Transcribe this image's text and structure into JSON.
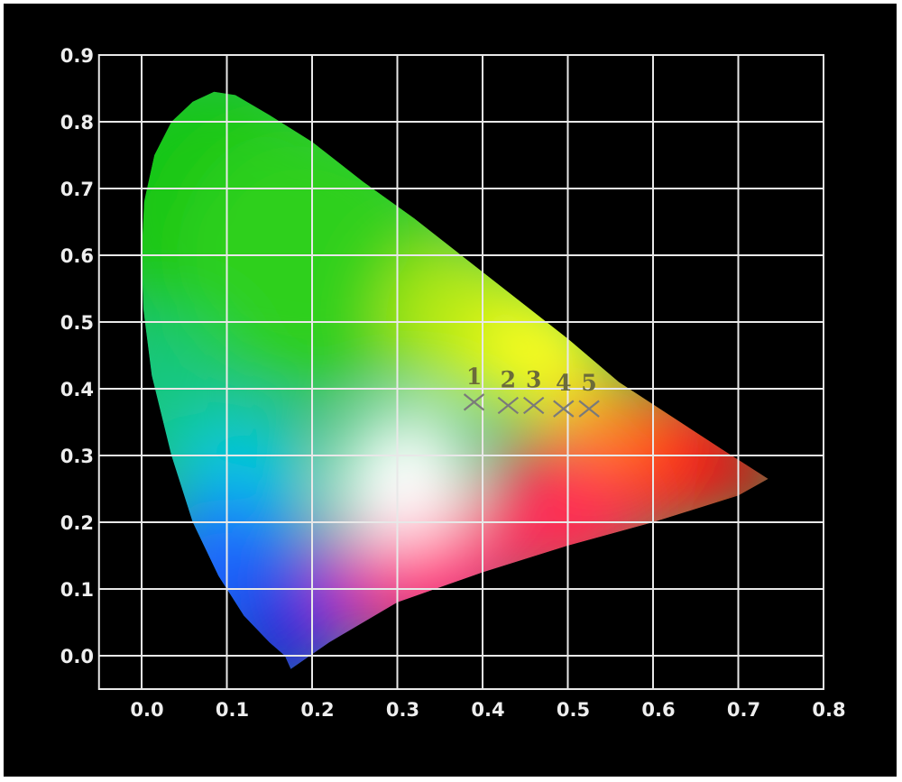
{
  "chart_data": {
    "type": "scatter",
    "title": "",
    "xlabel": "",
    "ylabel": "",
    "xlim": [
      -0.05,
      0.8
    ],
    "ylim": [
      -0.05,
      0.9
    ],
    "x_ticks": [
      "0.0",
      "0.1",
      "0.2",
      "0.3",
      "0.4",
      "0.5",
      "0.6",
      "0.7",
      "0.8"
    ],
    "y_ticks": [
      "0.0",
      "0.1",
      "0.2",
      "0.3",
      "0.4",
      "0.5",
      "0.6",
      "0.7",
      "0.8",
      "0.9"
    ],
    "grid": true,
    "background": "#000000",
    "grid_color": "#e8e8e8",
    "marker_color": "#7a7a7a",
    "label_color": "#6b6b3a",
    "background_image": "CIE 1931 chromaticity diagram (spectral locus gamut)",
    "points": [
      {
        "label": "1",
        "x": 0.39,
        "y": 0.38
      },
      {
        "label": "2",
        "x": 0.43,
        "y": 0.375
      },
      {
        "label": "3",
        "x": 0.46,
        "y": 0.375
      },
      {
        "label": "4",
        "x": 0.495,
        "y": 0.37
      },
      {
        "label": "5",
        "x": 0.525,
        "y": 0.37
      }
    ]
  }
}
